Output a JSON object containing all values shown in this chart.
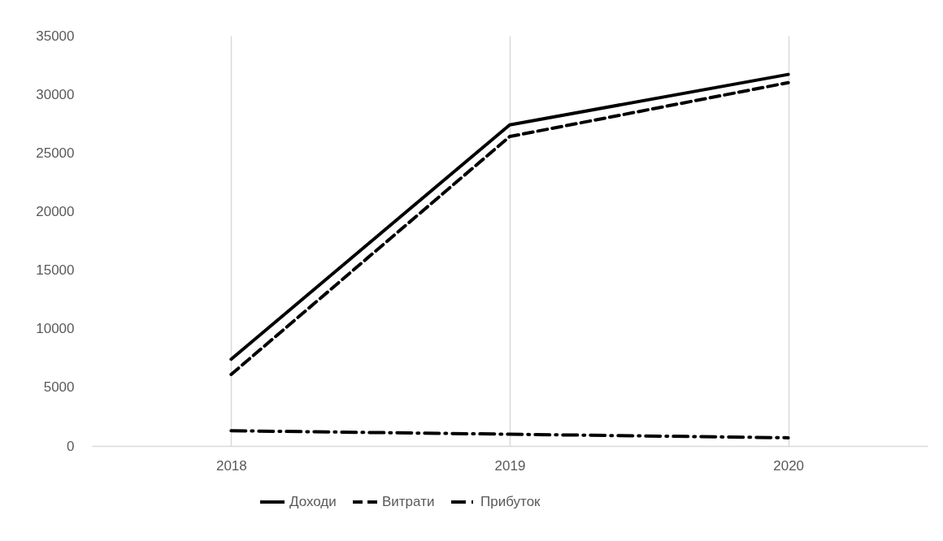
{
  "chart_data": {
    "type": "line",
    "categories": [
      "2018",
      "2019",
      "2020"
    ],
    "series": [
      {
        "name": "Доходи",
        "color": "#000000",
        "line_style": "solid",
        "values": [
          7400,
          27400,
          31700
        ]
      },
      {
        "name": "Витрати",
        "color": "#000000",
        "line_style": "dashed",
        "values": [
          6100,
          26400,
          31000
        ]
      },
      {
        "name": "Прибуток",
        "color": "#000000",
        "line_style": "dashdot",
        "values": [
          1300,
          1000,
          700
        ]
      }
    ],
    "ylim": [
      0,
      35000
    ],
    "yticks": [
      0,
      5000,
      10000,
      15000,
      20000,
      25000,
      30000,
      35000
    ],
    "grid": "x",
    "legend": "bottom",
    "marker": "none"
  }
}
